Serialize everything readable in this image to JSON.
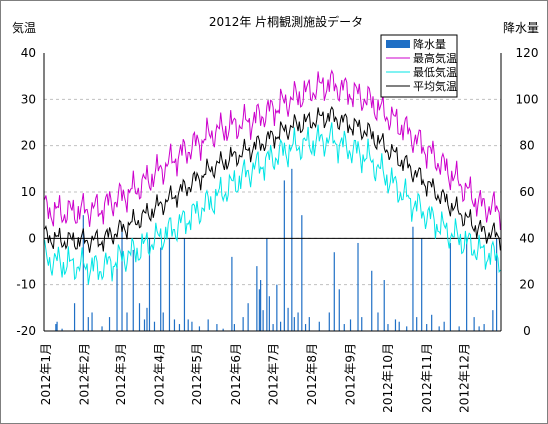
{
  "chart_data": {
    "type": "line",
    "title": "2012年 片桐観測施設データ",
    "ylabel_left": "気温",
    "ylabel_right": "降水量",
    "ylim_left": [
      -20,
      40
    ],
    "ylim_right": [
      0,
      120
    ],
    "yticks_left": [
      "40",
      "30",
      "20",
      "10",
      "0",
      "-10",
      "-20"
    ],
    "yticks_right": [
      "120",
      "100",
      "80",
      "60",
      "40",
      "20",
      "0"
    ],
    "xticks": [
      "2012年1月",
      "2012年2月",
      "2012年3月",
      "2012年4月",
      "2012年5月",
      "2012年6月",
      "2012年7月",
      "2012年8月",
      "2012年9月",
      "2012年10月",
      "2012年11月",
      "2012年12月"
    ],
    "grid": true,
    "legend_position": "top-right",
    "series": [
      {
        "name": "降水量",
        "kind": "bar",
        "axis": "right",
        "color": "#1f6fc5"
      },
      {
        "name": "最高気温",
        "kind": "line",
        "axis": "left",
        "color": "#cc00cc",
        "monthly_values": [
          5.5,
          6.5,
          11.0,
          17.5,
          23.0,
          25.5,
          30.0,
          33.5,
          30.0,
          23.5,
          15.5,
          7.0
        ]
      },
      {
        "name": "最低気温",
        "kind": "line",
        "axis": "left",
        "color": "#00e5e5",
        "monthly_values": [
          -5.5,
          -6.5,
          -2.5,
          2.5,
          8.5,
          15.0,
          19.5,
          21.5,
          17.5,
          9.0,
          2.0,
          -3.0
        ]
      },
      {
        "name": "平均気温",
        "kind": "line",
        "axis": "left",
        "color": "#000000",
        "monthly_values": [
          -0.5,
          -0.5,
          4.0,
          9.5,
          15.5,
          19.5,
          24.0,
          26.5,
          23.0,
          16.0,
          8.5,
          1.5
        ]
      }
    ],
    "precipitation_events": [
      {
        "day": 9,
        "mm": 3
      },
      {
        "day": 10,
        "mm": 4
      },
      {
        "day": 14,
        "mm": 1
      },
      {
        "day": 24,
        "mm": 12
      },
      {
        "day": 31,
        "mm": 50
      },
      {
        "day": 35,
        "mm": 6
      },
      {
        "day": 38,
        "mm": 8
      },
      {
        "day": 46,
        "mm": 2
      },
      {
        "day": 52,
        "mm": 6
      },
      {
        "day": 58,
        "mm": 28
      },
      {
        "day": 62,
        "mm": 45
      },
      {
        "day": 66,
        "mm": 8
      },
      {
        "day": 71,
        "mm": 35
      },
      {
        "day": 76,
        "mm": 12
      },
      {
        "day": 80,
        "mm": 5
      },
      {
        "day": 82,
        "mm": 10
      },
      {
        "day": 84,
        "mm": 40
      },
      {
        "day": 88,
        "mm": 4
      },
      {
        "day": 93,
        "mm": 36
      },
      {
        "day": 95,
        "mm": 8
      },
      {
        "day": 100,
        "mm": 40
      },
      {
        "day": 104,
        "mm": 5
      },
      {
        "day": 108,
        "mm": 3
      },
      {
        "day": 112,
        "mm": 40
      },
      {
        "day": 115,
        "mm": 5
      },
      {
        "day": 118,
        "mm": 4
      },
      {
        "day": 124,
        "mm": 2
      },
      {
        "day": 131,
        "mm": 5
      },
      {
        "day": 138,
        "mm": 3
      },
      {
        "day": 143,
        "mm": 1
      },
      {
        "day": 150,
        "mm": 32
      },
      {
        "day": 152,
        "mm": 3
      },
      {
        "day": 159,
        "mm": 6
      },
      {
        "day": 163,
        "mm": 12
      },
      {
        "day": 170,
        "mm": 28
      },
      {
        "day": 172,
        "mm": 18
      },
      {
        "day": 173,
        "mm": 22
      },
      {
        "day": 175,
        "mm": 9
      },
      {
        "day": 178,
        "mm": 40
      },
      {
        "day": 180,
        "mm": 15
      },
      {
        "day": 183,
        "mm": 3
      },
      {
        "day": 186,
        "mm": 20
      },
      {
        "day": 189,
        "mm": 4
      },
      {
        "day": 192,
        "mm": 65
      },
      {
        "day": 195,
        "mm": 10
      },
      {
        "day": 198,
        "mm": 70
      },
      {
        "day": 200,
        "mm": 6
      },
      {
        "day": 203,
        "mm": 8
      },
      {
        "day": 206,
        "mm": 50
      },
      {
        "day": 209,
        "mm": 3
      },
      {
        "day": 212,
        "mm": 6
      },
      {
        "day": 220,
        "mm": 4
      },
      {
        "day": 228,
        "mm": 8
      },
      {
        "day": 232,
        "mm": 34
      },
      {
        "day": 236,
        "mm": 18
      },
      {
        "day": 240,
        "mm": 3
      },
      {
        "day": 245,
        "mm": 5
      },
      {
        "day": 251,
        "mm": 38
      },
      {
        "day": 254,
        "mm": 6
      },
      {
        "day": 262,
        "mm": 26
      },
      {
        "day": 267,
        "mm": 8
      },
      {
        "day": 272,
        "mm": 22
      },
      {
        "day": 275,
        "mm": 3
      },
      {
        "day": 281,
        "mm": 5
      },
      {
        "day": 284,
        "mm": 4
      },
      {
        "day": 290,
        "mm": 2
      },
      {
        "day": 295,
        "mm": 45
      },
      {
        "day": 298,
        "mm": 6
      },
      {
        "day": 302,
        "mm": 40
      },
      {
        "day": 306,
        "mm": 3
      },
      {
        "day": 310,
        "mm": 7
      },
      {
        "day": 316,
        "mm": 2
      },
      {
        "day": 320,
        "mm": 4
      },
      {
        "day": 325,
        "mm": 38
      },
      {
        "day": 332,
        "mm": 2
      },
      {
        "day": 338,
        "mm": 40
      },
      {
        "day": 344,
        "mm": 6
      },
      {
        "day": 348,
        "mm": 2
      },
      {
        "day": 352,
        "mm": 3
      },
      {
        "day": 359,
        "mm": 9
      },
      {
        "day": 362,
        "mm": 40
      }
    ]
  }
}
